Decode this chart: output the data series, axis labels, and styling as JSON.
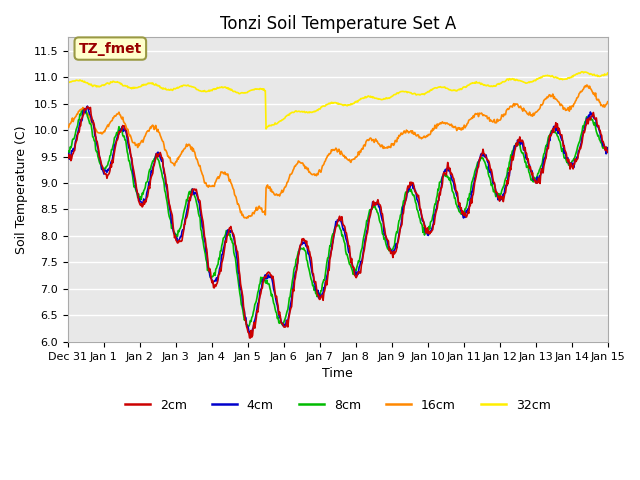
{
  "title": "Tonzi Soil Temperature Set A",
  "xlabel": "Time",
  "ylabel": "Soil Temperature (C)",
  "ylim": [
    6.0,
    11.75
  ],
  "yticks": [
    6.0,
    6.5,
    7.0,
    7.5,
    8.0,
    8.5,
    9.0,
    9.5,
    10.0,
    10.5,
    11.0,
    11.5
  ],
  "xtick_labels": [
    "Dec 31",
    "Jan 1",
    "Jan 2",
    "Jan 3",
    "Jan 4",
    "Jan 5",
    "Jan 6",
    "Jan 7",
    "Jan 8",
    "Jan 9",
    "Jan 10",
    "Jan 11",
    "Jan 12",
    "Jan 13",
    "Jan 14",
    "Jan 15"
  ],
  "colors": {
    "2cm": "#cc0000",
    "4cm": "#0000cc",
    "8cm": "#00bb00",
    "16cm": "#ff8800",
    "32cm": "#ffee00"
  },
  "annotation_text": "TZ_fmet",
  "annotation_bg": "#ffffcc",
  "annotation_fg": "#990000",
  "xlim": [
    0,
    15
  ],
  "n_days": 15,
  "legend_entries": [
    "2cm",
    "4cm",
    "8cm",
    "16cm",
    "32cm"
  ]
}
